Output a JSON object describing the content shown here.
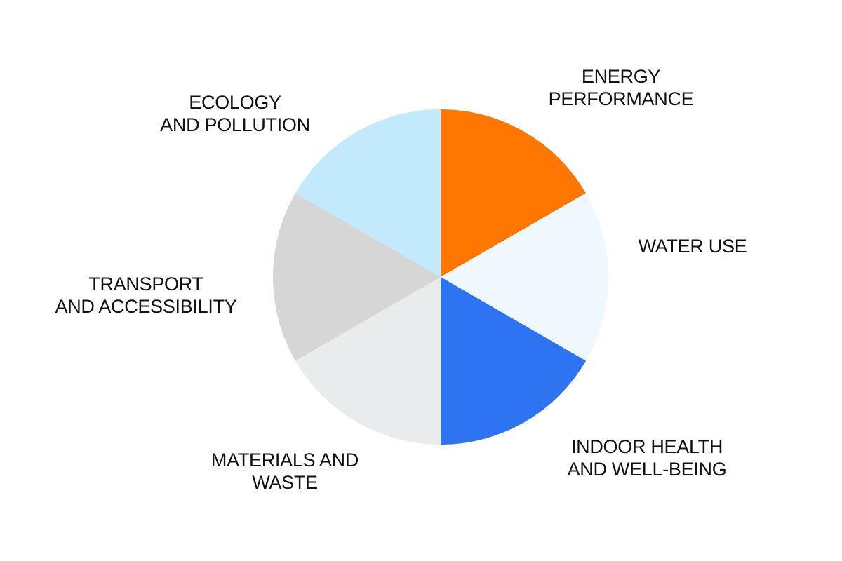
{
  "chart_data": {
    "type": "pie",
    "title": "",
    "slices": [
      {
        "label": [
          "ENERGY",
          "PERFORMANCE"
        ],
        "value": 1,
        "color": "#FF7600"
      },
      {
        "label": [
          "WATER USE"
        ],
        "value": 1,
        "color": "#EFF8FE"
      },
      {
        "label": [
          "INDOOR HEALTH",
          "AND WELL-BEING"
        ],
        "value": 1,
        "color": "#2E73F2"
      },
      {
        "label": [
          "MATERIALS AND",
          "WASTE"
        ],
        "value": 1,
        "color": "#E9ECEC"
      },
      {
        "label": [
          "TRANSPORT",
          "AND ACCESSIBILITY"
        ],
        "value": 1,
        "color": "#D6D6D6"
      },
      {
        "label": [
          "ECOLOGY",
          "AND POLLUTION"
        ],
        "value": 1,
        "color": "#C2E9FC"
      }
    ],
    "legend": "none",
    "start_angle_deg": 0,
    "direction": "clockwise"
  }
}
